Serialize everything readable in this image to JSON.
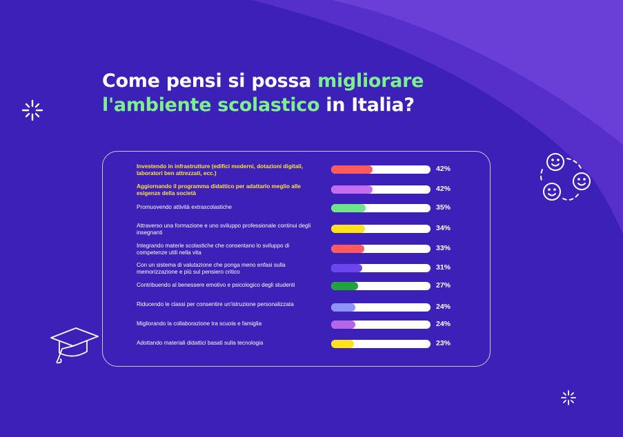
{
  "title": {
    "line1_prefix": "Come pensi si possa ",
    "line1_highlight": "migliorare",
    "line2_highlight": "l'ambiente scolastico",
    "line2_suffix": " in Italia?"
  },
  "chart_data": {
    "type": "bar",
    "orientation": "horizontal",
    "xlim": [
      0,
      100
    ],
    "grid": false,
    "legend": "none",
    "rows": [
      {
        "label": "Investendo in infrastrutture (edifici moderni, dotazioni digitali, laboratori ben attrezzati, ecc.)",
        "value": 42,
        "display": "42%",
        "color": "#ff5a5f",
        "highlight": true
      },
      {
        "label": "Aggiornando il programma didattico per adattarlo meglio alle esigenze della società",
        "value": 42,
        "display": "42%",
        "color": "#c36ef0",
        "highlight": true
      },
      {
        "label": "Promuovendo attività extrascolastiche",
        "value": 35,
        "display": "35%",
        "color": "#6fe48a",
        "highlight": false
      },
      {
        "label": "Attraverso una formazione e uno sviluppo professionale continui degli insegnanti",
        "value": 34,
        "display": "34%",
        "color": "#ffe21c",
        "highlight": false
      },
      {
        "label": "Integrando materie scolastiche che consentano lo sviluppo di competenze utili nella vita",
        "value": 33,
        "display": "33%",
        "color": "#ff5a5f",
        "highlight": false
      },
      {
        "label": "Con un sistema di valutazione che ponga meno enfasi sulla memorizzazione e più sul pensiero critico",
        "value": 31,
        "display": "31%",
        "color": "#6a45f0",
        "highlight": false
      },
      {
        "label": "Contribuendo al benessere emotivo e psicologico degli studenti",
        "value": 27,
        "display": "27%",
        "color": "#20a33a",
        "highlight": false
      },
      {
        "label": "Riducendo le classi per consentire un'istruzione personalizzata",
        "value": 24,
        "display": "24%",
        "color": "#8f93f7",
        "highlight": false
      },
      {
        "label": "Migliorando la collaborazione tra scuola e famiglia",
        "value": 24,
        "display": "24%",
        "color": "#b566e8",
        "highlight": false
      },
      {
        "label": "Adottando materiali didattici basati sulla tecnologia",
        "value": 23,
        "display": "23%",
        "color": "#ffe21c",
        "highlight": false
      }
    ]
  },
  "colors": {
    "background": "#3d20b8",
    "wave": "#6a3fd8",
    "title_highlight": "#7cf08f",
    "label_highlight": "#ffe23a",
    "track": "#ffffff"
  },
  "decorations": [
    "sparkle-icon",
    "smiley-cluster-icon",
    "graduation-cap-icon",
    "sparkle-icon"
  ]
}
